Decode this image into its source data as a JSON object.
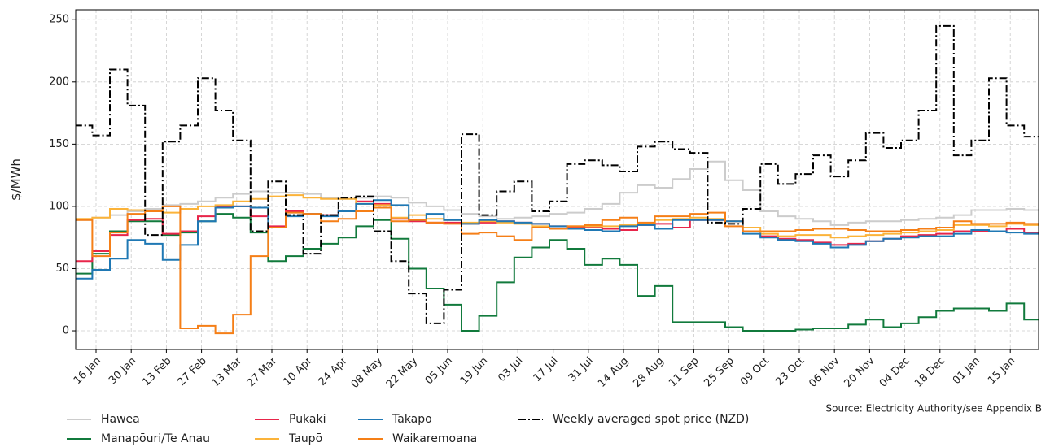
{
  "chart_data": {
    "type": "step",
    "y_label": "$/MWh",
    "source": "Source: Electricity Authority/see Appendix B",
    "ylim": [
      -15,
      258
    ],
    "yticks": [
      0,
      50,
      100,
      150,
      200,
      250
    ],
    "grid": true,
    "legend": "bottom",
    "categories": [
      null,
      "16 Jan",
      null,
      "30 Jan",
      null,
      "13 Feb",
      null,
      "27 Feb",
      null,
      "13 Mar",
      null,
      "27 Mar",
      null,
      "10 Apr",
      null,
      "24 Apr",
      null,
      "08 May",
      null,
      "22 May",
      null,
      "05 Jun",
      null,
      "19 Jun",
      null,
      "03 Jul",
      null,
      "17 Jul",
      null,
      "31 Jul",
      null,
      "14 Aug",
      null,
      "28 Aug",
      null,
      "11 Sep",
      null,
      "25 Sep",
      null,
      "09 Oct",
      null,
      "23 Oct",
      null,
      "06 Nov",
      null,
      "20 Nov",
      null,
      "04 Dec",
      null,
      "18 Dec",
      null,
      "01 Jan",
      null,
      "15 Jan",
      null
    ],
    "series": [
      {
        "name": "Hawea",
        "color": "#cccccc",
        "values": [
          89,
          91,
          93,
          96,
          98,
          101,
          102,
          104,
          107,
          110,
          112,
          111,
          111,
          110,
          107,
          106,
          107,
          108,
          107,
          103,
          100,
          97,
          94,
          92,
          90,
          91,
          92,
          94,
          95,
          98,
          102,
          111,
          117,
          115,
          122,
          130,
          136,
          121,
          113,
          96,
          92,
          90,
          88,
          85,
          87,
          88,
          88,
          89,
          90,
          91,
          93,
          97,
          97,
          98,
          97
        ]
      },
      {
        "name": "Manapōuri/Te Anau",
        "color": "#117a3c",
        "values": [
          46,
          62,
          80,
          88,
          88,
          77,
          79,
          88,
          94,
          91,
          79,
          56,
          60,
          66,
          70,
          75,
          84,
          89,
          74,
          50,
          34,
          21,
          0,
          12,
          39,
          59,
          67,
          73,
          66,
          53,
          58,
          53,
          28,
          36,
          7,
          7,
          7,
          3,
          0,
          0,
          0,
          1,
          2,
          2,
          5,
          9,
          3,
          6,
          11,
          16,
          18,
          18,
          16,
          22,
          9
        ]
      },
      {
        "name": "Pukaki",
        "color": "#e8254a",
        "values": [
          56,
          64,
          77,
          89,
          90,
          78,
          80,
          92,
          100,
          100,
          92,
          84,
          96,
          94,
          93,
          96,
          104,
          102,
          90,
          88,
          87,
          87,
          86,
          87,
          88,
          87,
          86,
          84,
          83,
          83,
          82,
          81,
          85,
          86,
          83,
          89,
          89,
          88,
          80,
          76,
          74,
          73,
          71,
          69,
          70,
          72,
          74,
          76,
          77,
          78,
          80,
          80,
          80,
          82,
          79
        ]
      },
      {
        "name": "Taupō",
        "color": "#fbb33a",
        "values": [
          90,
          91,
          98,
          97,
          96,
          95,
          98,
          100,
          101,
          104,
          106,
          108,
          109,
          107,
          106,
          106,
          102,
          101,
          91,
          93,
          90,
          89,
          87,
          88,
          87,
          86,
          84,
          82,
          84,
          84,
          84,
          85,
          86,
          89,
          90,
          91,
          90,
          88,
          83,
          78,
          76,
          77,
          77,
          75,
          76,
          77,
          78,
          79,
          80,
          81,
          85,
          85,
          84,
          86,
          85
        ]
      },
      {
        "name": "Takapō",
        "color": "#1f78b4",
        "values": [
          42,
          49,
          58,
          73,
          70,
          57,
          69,
          88,
          99,
          100,
          99,
          83,
          92,
          94,
          92,
          96,
          102,
          105,
          101,
          89,
          94,
          89,
          86,
          89,
          88,
          87,
          86,
          84,
          82,
          81,
          80,
          84,
          85,
          82,
          89,
          89,
          89,
          88,
          78,
          75,
          73,
          72,
          70,
          67,
          69,
          72,
          74,
          75,
          76,
          76,
          78,
          81,
          80,
          79,
          78
        ]
      },
      {
        "name": "Waikaremoana",
        "color": "#f57f17",
        "values": [
          89,
          60,
          79,
          94,
          96,
          100,
          2,
          4,
          -2,
          13,
          60,
          83,
          95,
          94,
          88,
          90,
          96,
          99,
          88,
          89,
          87,
          86,
          78,
          79,
          76,
          73,
          83,
          82,
          84,
          85,
          89,
          91,
          87,
          92,
          92,
          94,
          95,
          84,
          80,
          80,
          80,
          81,
          82,
          82,
          81,
          80,
          80,
          81,
          82,
          83,
          88,
          86,
          86,
          87,
          86
        ]
      },
      {
        "name": "Weekly averaged spot price (NZD)",
        "color": "#000000",
        "dash": true,
        "values": [
          165,
          157,
          210,
          181,
          77,
          152,
          165,
          203,
          177,
          153,
          80,
          120,
          93,
          62,
          93,
          107,
          108,
          80,
          56,
          30,
          6,
          33,
          158,
          93,
          112,
          120,
          96,
          104,
          134,
          137,
          133,
          128,
          148,
          152,
          146,
          143,
          87,
          86,
          98,
          134,
          118,
          126,
          141,
          124,
          137,
          159,
          147,
          153,
          177,
          245,
          141,
          153,
          203,
          165,
          156
        ]
      }
    ]
  }
}
